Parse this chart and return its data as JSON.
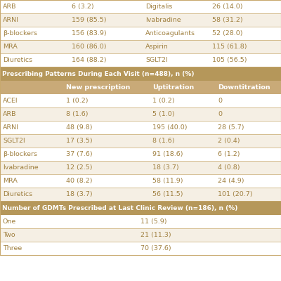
{
  "top_rows": [
    [
      "ARB",
      "6 (3.2)",
      "Digitalis",
      "26 (14.0)"
    ],
    [
      "ARNI",
      "159 (85.5)",
      "Ivabradine",
      "58 (31.2)"
    ],
    [
      "β-blockers",
      "156 (83.9)",
      "Anticoagulants",
      "52 (28.0)"
    ],
    [
      "MRA",
      "160 (86.0)",
      "Aspirin",
      "115 (61.8)"
    ],
    [
      "Diuretics",
      "164 (88.2)",
      "SGLT2I",
      "105 (56.5)"
    ]
  ],
  "section1_header": "Prescribing Patterns During Each Visit (n=488), n (%)",
  "section1_col_headers": [
    "",
    "New prescription",
    "Uptitration",
    "Downtitration"
  ],
  "section1_rows": [
    [
      "ACEI",
      "1 (0.2)",
      "1 (0.2)",
      "0"
    ],
    [
      "ARB",
      "8 (1.6)",
      "5 (1.0)",
      "0"
    ],
    [
      "ARNI",
      "48 (9.8)",
      "195 (40.0)",
      "28 (5.7)"
    ],
    [
      "SGLT2I",
      "17 (3.5)",
      "8 (1.6)",
      "2 (0.4)"
    ],
    [
      "β-blockers",
      "37 (7.6)",
      "91 (18.6)",
      "6 (1.2)"
    ],
    [
      "Ivabradine",
      "12 (2.5)",
      "18 (3.7)",
      "4 (0.8)"
    ],
    [
      "MRA",
      "40 (8.2)",
      "58 (11.9)",
      "24 (4.9)"
    ],
    [
      "Diuretics",
      "18 (3.7)",
      "56 (11.5)",
      "101 (20.7)"
    ]
  ],
  "section2_header": "Number of GDMTs Prescribed at Last Clinic Review (n=186), n (%)",
  "section2_rows": [
    [
      "One",
      "11 (5.9)"
    ],
    [
      "Two",
      "21 (11.3)"
    ],
    [
      "Three",
      "70 (37.6)"
    ]
  ],
  "header_bg": "#b5975a",
  "subheader_bg": "#c9aa78",
  "alt_row_bg": "#f5efe4",
  "white_bg": "#ffffff",
  "header_text": "#ffffff",
  "body_text": "#a08040",
  "divider_color": "#c8a96e"
}
